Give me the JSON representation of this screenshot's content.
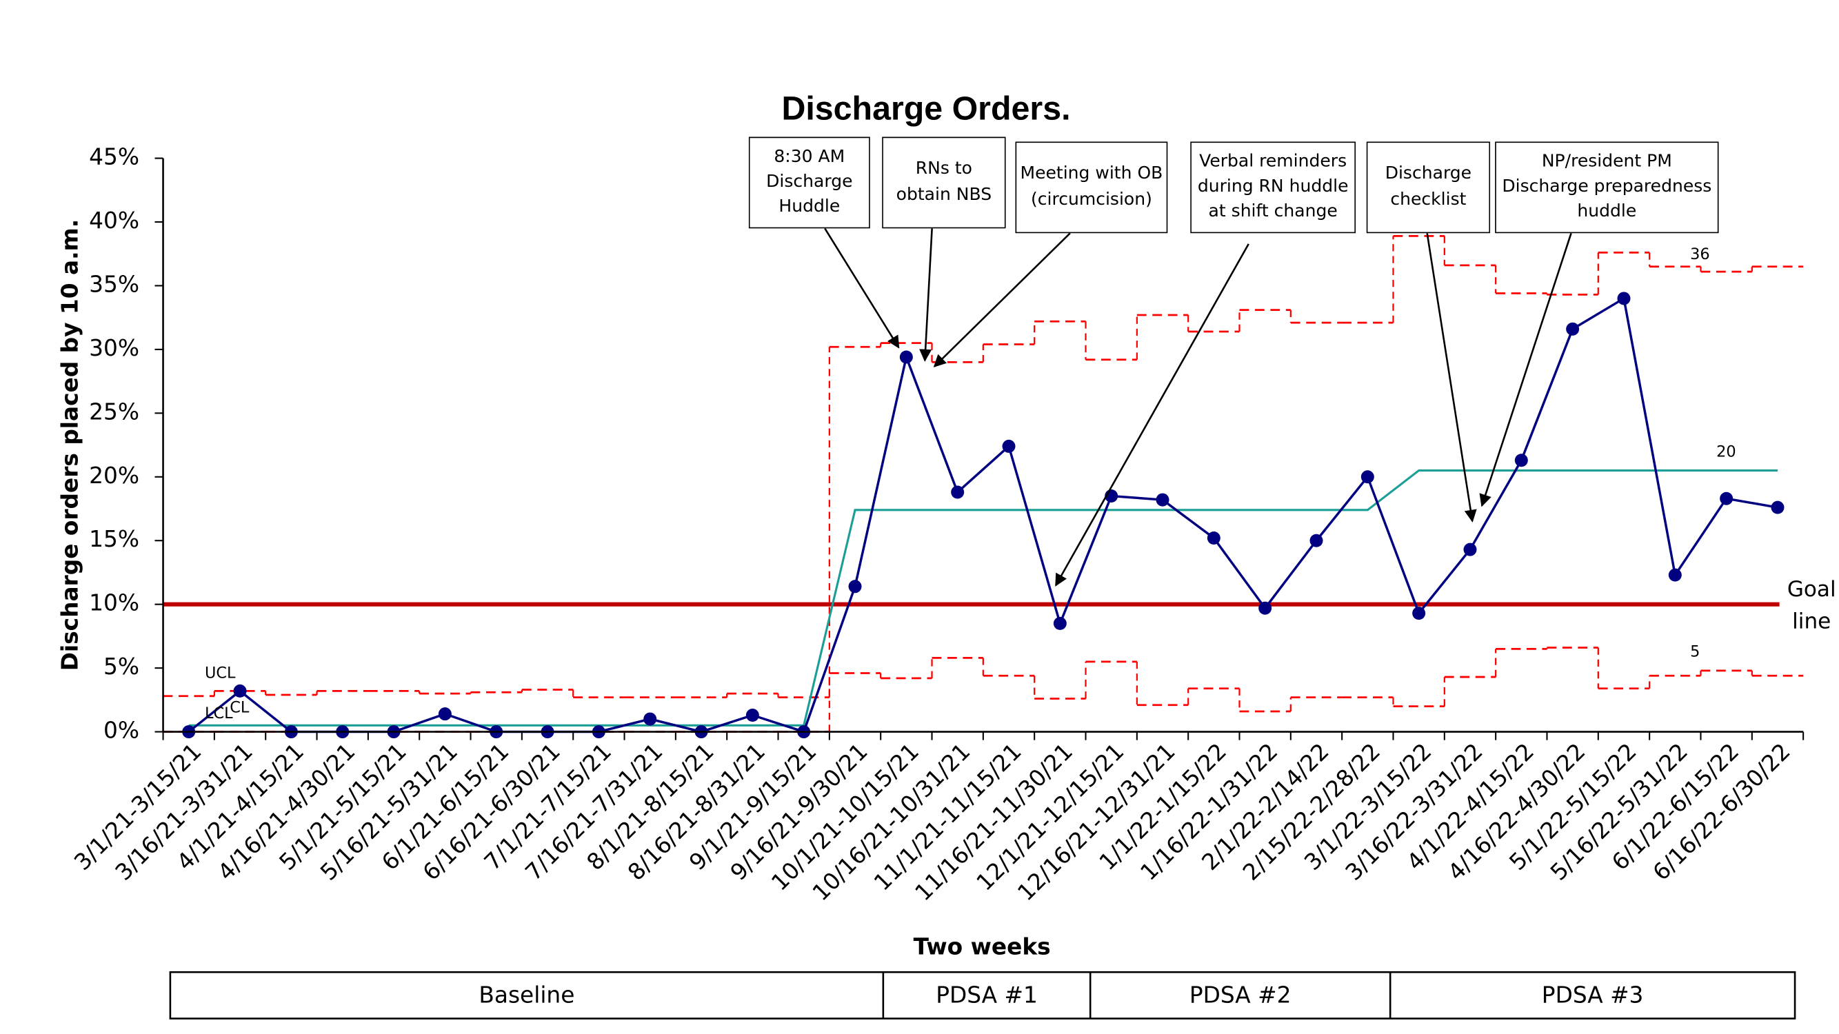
{
  "chart_data": {
    "type": "line",
    "title": "Discharge Orders.",
    "x_label": "Two weeks",
    "y_label": "Discharge orders placed by 10 a.m.",
    "categories": [
      "3/1/21-3/15/21",
      "3/16/21-3/31/21",
      "4/1/21-4/15/21",
      "4/16/21-4/30/21",
      "5/1/21-5/15/21",
      "5/16/21-5/31/21",
      "6/1/21-6/15/21",
      "6/16/21-6/30/21",
      "7/1/21-7/15/21",
      "7/16/21-7/31/21",
      "8/1/21-8/15/21",
      "8/16/21-8/31/21",
      "9/1/21-9/15/21",
      "9/16/21-9/30/21",
      "10/1/21-10/15/21",
      "10/16/21-10/31/21",
      "11/1/21-11/15/21",
      "11/16/21-11/30/21",
      "12/1/21-12/15/21",
      "12/16/21-12/31/21",
      "1/1/22-1/15/22",
      "1/16/22-1/31/22",
      "2/1/22-2/14/22",
      "2/15/22-2/28/22",
      "3/1/22-3/15/22",
      "3/16/22-3/31/22",
      "4/1/22-4/15/22",
      "4/16/22-4/30/22",
      "5/1/22-5/15/22",
      "5/16/22-5/31/22",
      "6/1/22-6/15/22",
      "6/16/22-6/30/22"
    ],
    "series": [
      {
        "color": "#000080",
        "style": "line-markers",
        "values": [
          0,
          3.2,
          0,
          0,
          0,
          1.4,
          0,
          0,
          0,
          1.0,
          0,
          1.3,
          0,
          11.4,
          29.4,
          18.8,
          22.4,
          8.5,
          18.5,
          18.2,
          15.2,
          9.7,
          15.0,
          20.0,
          9.3,
          14.3,
          21.3,
          31.6,
          34.0,
          12.3,
          18.3,
          17.6
        ]
      },
      {
        "color": "#1a9e96",
        "style": "line",
        "values": [
          0.5,
          0.5,
          0.5,
          0.5,
          0.5,
          0.5,
          0.5,
          0.5,
          0.5,
          0.5,
          0.5,
          0.5,
          0.5,
          17.4,
          17.4,
          17.4,
          17.4,
          17.4,
          17.4,
          17.4,
          17.4,
          17.4,
          17.4,
          17.4,
          20.5,
          20.5,
          20.5,
          20.5,
          20.5,
          20.5,
          20.5,
          20.5
        ]
      },
      {
        "color": "#ff0000",
        "style": "step-dashed",
        "values": [
          2.8,
          3.2,
          2.9,
          3.2,
          3.2,
          3.0,
          3.1,
          3.3,
          2.7,
          2.7,
          2.7,
          3.0,
          2.7,
          30.2,
          30.5,
          29.0,
          30.4,
          32.2,
          29.2,
          32.7,
          31.4,
          33.1,
          32.1,
          32.1,
          38.9,
          36.6,
          34.4,
          34.3,
          37.6,
          36.5,
          36.1,
          36.5
        ]
      },
      {
        "color": "#ff0000",
        "style": "step-dashed",
        "values": [
          0,
          0,
          0,
          0,
          0,
          0,
          0,
          0,
          0,
          0,
          0,
          0,
          0,
          4.6,
          4.2,
          5.8,
          4.4,
          2.6,
          5.5,
          2.1,
          3.4,
          1.6,
          2.7,
          2.7,
          2.0,
          4.3,
          6.5,
          6.6,
          3.4,
          4.4,
          4.8,
          4.4
        ]
      }
    ],
    "goal": {
      "value": 10,
      "label": "Goal line",
      "color": "#c00000"
    },
    "ylim": [
      0,
      45
    ],
    "yticks": [
      {
        "value": 0,
        "label": "0%"
      },
      {
        "value": 5,
        "label": "5%"
      },
      {
        "value": 10,
        "label": "10%"
      },
      {
        "value": 15,
        "label": "15%"
      },
      {
        "value": 20,
        "label": "20%"
      },
      {
        "value": 25,
        "label": "25%"
      },
      {
        "value": 30,
        "label": "30%"
      },
      {
        "value": 35,
        "label": "35%"
      },
      {
        "value": 40,
        "label": "40%"
      },
      {
        "value": 45,
        "label": "45%"
      }
    ],
    "line_labels": [
      "UCL",
      "CL",
      "LCL",
      "36",
      "20",
      "5"
    ],
    "callouts": [
      "8:30 AM Discharge Huddle",
      "RNs to obtain NBS",
      "Meeting with OB (circumcision)",
      "Verbal reminders during RN huddle at shift change",
      "Discharge checklist",
      "NP/resident PM Discharge preparedness huddle"
    ],
    "phases": [
      "Baseline",
      "PDSA #1",
      "PDSA #2",
      "PDSA #3"
    ]
  }
}
